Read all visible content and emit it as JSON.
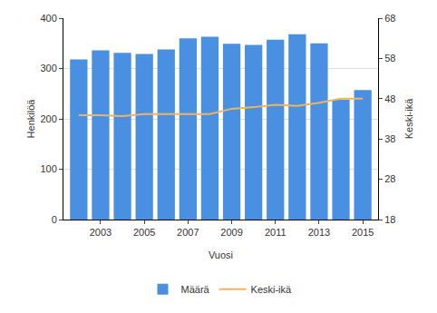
{
  "chart_data": {
    "type": "bar",
    "x_label": "Vuosi",
    "y_label": "Henkilöä",
    "y2_label": "Keski-ikä",
    "x": [
      2002,
      2003,
      2004,
      2005,
      2006,
      2007,
      2008,
      2009,
      2010,
      2011,
      2012,
      2013,
      2014,
      2015
    ],
    "xlim": [
      2001.3,
      2015.7
    ],
    "xticks": [
      2003,
      2005,
      2007,
      2009,
      2011,
      2013,
      2015
    ],
    "ylim": [
      0,
      400
    ],
    "yticks": [
      0,
      100,
      200,
      300,
      400
    ],
    "y2lim": [
      18,
      68
    ],
    "y2ticks": [
      18,
      28,
      38,
      48,
      58,
      68
    ],
    "grid": true,
    "legend": "bottom",
    "series": [
      {
        "name": "Määrä",
        "type": "bar",
        "color": "#4a90e2",
        "values": [
          318,
          336,
          331,
          329,
          338,
          360,
          363,
          349,
          347,
          357,
          368,
          350,
          238,
          257
        ]
      },
      {
        "name": "Keski-ikä",
        "type": "line",
        "axis": "y2",
        "color": "#f2b35c",
        "values": [
          43.9,
          43.9,
          43.7,
          44.2,
          44.2,
          44.2,
          44.2,
          45.5,
          45.9,
          46.5,
          46.2,
          47.0,
          48.0,
          48.0
        ]
      }
    ]
  }
}
